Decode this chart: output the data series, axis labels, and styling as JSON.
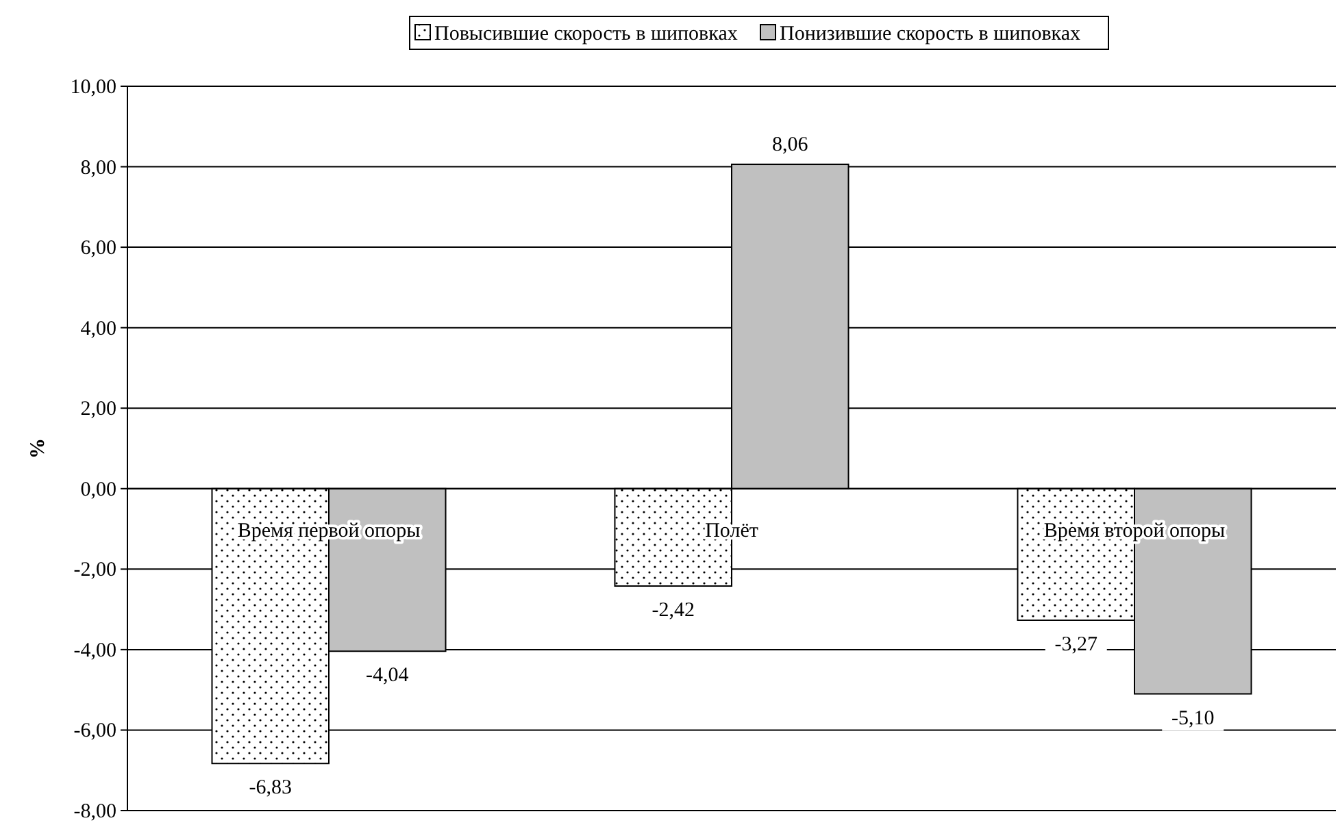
{
  "chart_data": {
    "type": "bar",
    "ylabel": "%",
    "categories": [
      "Время первой опоры",
      "Полёт",
      "Время второй опоры"
    ],
    "series": [
      {
        "name": "Повысившие скорость в шиповках",
        "color": "#ffffff",
        "values": [
          -6.83,
          -2.42,
          -3.27
        ],
        "value_labels": [
          "-6,83",
          "-2,42",
          "-3,27"
        ]
      },
      {
        "name": "Понизившие скорость в шиповках",
        "color": "#c0c0c0",
        "values": [
          -4.04,
          8.06,
          -5.1
        ],
        "value_labels": [
          "-4,04",
          "8,06",
          "-5,10"
        ]
      }
    ],
    "ylim": [
      -8,
      10
    ],
    "yticks": [
      {
        "value": -8,
        "label": "-8,00"
      },
      {
        "value": -6,
        "label": "-6,00"
      },
      {
        "value": -4,
        "label": "-4,00"
      },
      {
        "value": -2,
        "label": "-2,00"
      },
      {
        "value": 0,
        "label": "0,00"
      },
      {
        "value": 2,
        "label": "2,00"
      },
      {
        "value": 4,
        "label": "4,00"
      },
      {
        "value": 6,
        "label": "6,00"
      },
      {
        "value": 8,
        "label": "8,00"
      },
      {
        "value": 10,
        "label": "10,00"
      }
    ],
    "grid": "y",
    "legend": "top"
  }
}
